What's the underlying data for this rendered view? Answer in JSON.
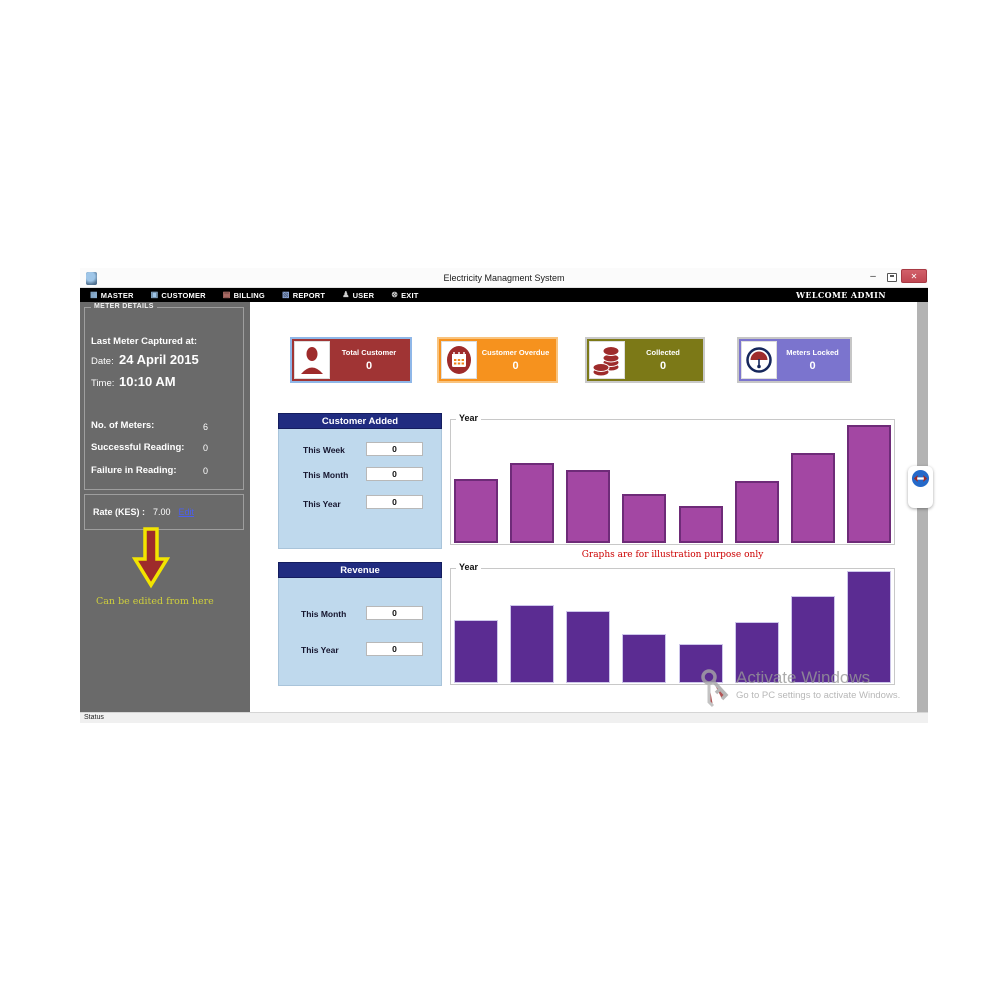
{
  "window": {
    "title": "Electricity Managment System",
    "controls": {
      "minimize_icon": "–",
      "maximize_icon": "restore-square",
      "close_icon": "✕"
    }
  },
  "menu_bar": {
    "items": [
      {
        "label": "MASTER",
        "icon": "master-icon",
        "glyph": "▦",
        "glyph_color": "#8fb6d9"
      },
      {
        "label": "CUSTOMER",
        "icon": "customer-icon",
        "glyph": "▣",
        "glyph_color": "#9cc3e5"
      },
      {
        "label": "BILLING",
        "icon": "billing-icon",
        "glyph": "▤",
        "glyph_color": "#d98880"
      },
      {
        "label": "REPORT",
        "icon": "report-icon",
        "glyph": "▧",
        "glyph_color": "#8faadc"
      },
      {
        "label": "USER",
        "icon": "user-icon",
        "glyph": "♟",
        "glyph_color": "#cfcfcf"
      },
      {
        "label": "EXIT",
        "icon": "exit-icon",
        "glyph": "⊗",
        "glyph_color": "#cfcfcf"
      }
    ],
    "welcome_text": "WELCOME ADMIN"
  },
  "sidebar": {
    "meter_details": {
      "group_title": "METER DETAILS",
      "last_meter_label": "Last Meter Captured at:",
      "date_label": "Date:",
      "date_value": "24 April 2015",
      "time_label": "Time:",
      "time_value": "10:10 AM",
      "stats": [
        {
          "label": "No. of Meters:",
          "value": "6"
        },
        {
          "label": "Successful Reading:",
          "value": "0"
        },
        {
          "label": "Failure in Reading:",
          "value": "0"
        }
      ]
    },
    "rate": {
      "label": "Rate (KES) :",
      "value": "7.00",
      "edit_link": "Edit"
    },
    "annotation": "Can be edited from here",
    "annotation_color": "#cfcf3c",
    "arrow_color": "#f2e400"
  },
  "cards": [
    {
      "title": "Total Customer",
      "value": "0",
      "color": "#a03434",
      "border_color": "#8fb7e8",
      "icon": "person-icon"
    },
    {
      "title": "Customer Overdue",
      "value": "0",
      "color": "#f6921e",
      "border_color": "#f9c37d",
      "icon": "calendar-icon"
    },
    {
      "title": "Collected",
      "value": "0",
      "color": "#7c7917",
      "border_color": "#c9c9c9",
      "icon": "coins-icon"
    },
    {
      "title": "Meters Locked",
      "value": "0",
      "color": "#7b74ce",
      "border_color": "#c6c6c6",
      "icon": "meter-gauge-icon"
    }
  ],
  "customer_added_panel": {
    "title": "Customer Added",
    "rows": [
      {
        "label": "This Week",
        "value": "0"
      },
      {
        "label": "This Month",
        "value": "0"
      },
      {
        "label": "This Year",
        "value": "0"
      }
    ]
  },
  "revenue_panel": {
    "title": "Revenue",
    "rows": [
      {
        "label": "This Month",
        "value": "0"
      },
      {
        "label": "This Year",
        "value": "0"
      }
    ]
  },
  "charts_note": "Graphs are for illustration purpose only",
  "chart_data": [
    {
      "type": "bar",
      "title": "Year",
      "values": [
        64,
        80,
        73,
        49,
        37,
        62,
        90,
        118
      ],
      "ylim": [
        0,
        126
      ],
      "bar_color": "#a347a3",
      "bar_border_color": "#6e2b78",
      "bar_border_width": 2,
      "grid": false,
      "note": "no axis tick labels shown; values are relative bar heights"
    },
    {
      "type": "bar",
      "title": "Year",
      "values": [
        63,
        78,
        72,
        49,
        39,
        61,
        87,
        112
      ],
      "ylim": [
        0,
        117
      ],
      "bar_color": "#5b2c92",
      "bar_border_color": "#cdc6ea",
      "bar_border_width": 1,
      "grid": false,
      "note": "no axis tick labels shown; values are relative bar heights"
    }
  ],
  "watermark": {
    "line1": "Activate Windows",
    "line2": "Go to PC settings to activate Windows.",
    "icon": "key-icon"
  },
  "status_bar": {
    "text": "Status"
  },
  "side_tab": {
    "icon": "teamviewer-icon"
  }
}
